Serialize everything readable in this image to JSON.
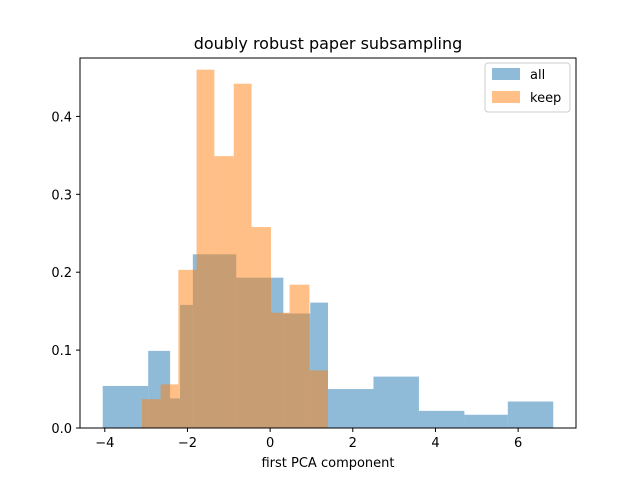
{
  "chart_data": {
    "type": "histogram",
    "title": "doubly robust paper subsampling",
    "xlabel": "first PCA component",
    "ylabel": "",
    "xlim": [
      -4.6,
      7.4
    ],
    "ylim": [
      0,
      0.475
    ],
    "xticks": [
      -4,
      -2,
      0,
      2,
      4,
      6
    ],
    "yticks": [
      0.0,
      0.1,
      0.2,
      0.3,
      0.4
    ],
    "legend_position": "top-right",
    "series": [
      {
        "name": "all",
        "color": "#1f77b4",
        "opacity": 0.5,
        "bins": [
          {
            "x0": -4.05,
            "x1": -2.95,
            "y": 0.054
          },
          {
            "x0": -2.95,
            "x1": -2.42,
            "y": 0.099
          },
          {
            "x0": -2.42,
            "x1": -2.18,
            "y": 0.038
          },
          {
            "x0": -2.18,
            "x1": -1.87,
            "y": 0.158
          },
          {
            "x0": -1.87,
            "x1": -1.42,
            "y": 0.223
          },
          {
            "x0": -1.42,
            "x1": -0.82,
            "y": 0.223
          },
          {
            "x0": -0.82,
            "x1": 0.32,
            "y": 0.193
          },
          {
            "x0": 0.32,
            "x1": 0.97,
            "y": 0.147
          },
          {
            "x0": 0.97,
            "x1": 1.4,
            "y": 0.161
          },
          {
            "x0": 1.4,
            "x1": 2.5,
            "y": 0.05
          },
          {
            "x0": 2.5,
            "x1": 3.6,
            "y": 0.066
          },
          {
            "x0": 3.6,
            "x1": 4.7,
            "y": 0.022
          },
          {
            "x0": 4.7,
            "x1": 5.75,
            "y": 0.017
          },
          {
            "x0": 5.75,
            "x1": 6.85,
            "y": 0.034
          }
        ]
      },
      {
        "name": "keep",
        "color": "#ff7f0e",
        "opacity": 0.5,
        "bins": [
          {
            "x0": -3.1,
            "x1": -2.65,
            "y": 0.037
          },
          {
            "x0": -2.65,
            "x1": -2.22,
            "y": 0.056
          },
          {
            "x0": -2.22,
            "x1": -1.78,
            "y": 0.203
          },
          {
            "x0": -1.78,
            "x1": -1.35,
            "y": 0.46
          },
          {
            "x0": -1.35,
            "x1": -0.88,
            "y": 0.349
          },
          {
            "x0": -0.88,
            "x1": -0.45,
            "y": 0.442
          },
          {
            "x0": -0.45,
            "x1": 0.02,
            "y": 0.258
          },
          {
            "x0": 0.02,
            "x1": 0.47,
            "y": 0.148
          },
          {
            "x0": 0.47,
            "x1": 0.95,
            "y": 0.184
          },
          {
            "x0": 0.95,
            "x1": 1.4,
            "y": 0.074
          }
        ]
      }
    ]
  }
}
